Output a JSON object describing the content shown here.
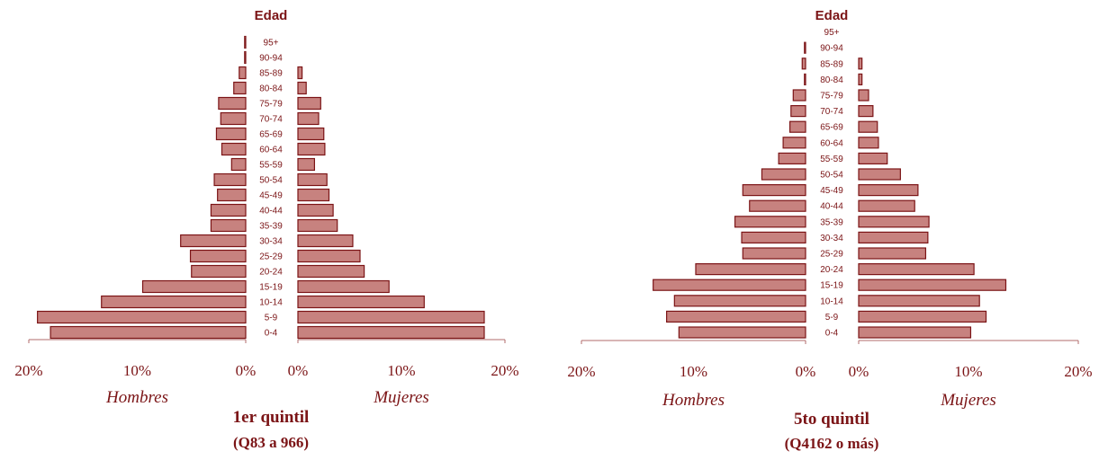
{
  "colors": {
    "bar_fill": "#c7827f",
    "bar_stroke": "#7b1416",
    "text": "#7b1416"
  },
  "chart_data": [
    {
      "type": "bar",
      "orientation": "horizontal population pyramid",
      "title": "1er quintil",
      "subtitle": "(Q83 a 966)",
      "category_label": "Edad",
      "categories": [
        "0-4",
        "5-9",
        "10-14",
        "15-19",
        "20-24",
        "25-29",
        "30-34",
        "35-39",
        "40-44",
        "45-49",
        "50-54",
        "55-59",
        "60-64",
        "65-69",
        "70-74",
        "75-79",
        "80-84",
        "85-89",
        "90-94",
        "95+"
      ],
      "left_label": "Hombres",
      "right_label": "Mujeres",
      "xlim": [
        0,
        20
      ],
      "ticks": [
        "20%",
        "10%",
        "0%"
      ],
      "ticks_right": [
        "0%",
        "10%",
        "20%"
      ],
      "series": [
        {
          "name": "Hombres",
          "values": [
            18.0,
            19.2,
            13.3,
            9.5,
            5.0,
            5.1,
            6.0,
            3.2,
            3.2,
            2.6,
            2.9,
            1.3,
            2.2,
            2.7,
            2.3,
            2.5,
            1.1,
            0.6,
            0.1,
            0.1
          ]
        },
        {
          "name": "Mujeres",
          "values": [
            18.0,
            18.0,
            12.2,
            8.8,
            6.4,
            6.0,
            5.3,
            3.8,
            3.4,
            3.0,
            2.8,
            1.6,
            2.6,
            2.5,
            2.0,
            2.2,
            0.8,
            0.4,
            0.0,
            0.0
          ]
        }
      ]
    },
    {
      "type": "bar",
      "orientation": "horizontal population pyramid",
      "title": "5to quintil",
      "subtitle": "(Q4162 o más)",
      "category_label": "Edad",
      "categories": [
        "0-4",
        "5-9",
        "10-14",
        "15-19",
        "20-24",
        "25-29",
        "30-34",
        "35-39",
        "40-44",
        "45-49",
        "50-54",
        "55-59",
        "60-64",
        "65-69",
        "70-74",
        "75-79",
        "80-84",
        "85-89",
        "90-94",
        "95+"
      ],
      "left_label": "Hombres",
      "right_label": "Mujeres",
      "xlim": [
        0,
        20
      ],
      "ticks": [
        "20%",
        "10%",
        "0%"
      ],
      "ticks_right": [
        "0%",
        "10%",
        "20%"
      ],
      "series": [
        {
          "name": "Hombres",
          "values": [
            11.3,
            12.4,
            11.7,
            13.6,
            9.8,
            5.6,
            5.7,
            6.3,
            5.0,
            5.6,
            3.9,
            2.4,
            2.0,
            1.4,
            1.3,
            1.1,
            0.1,
            0.3,
            0.1,
            0.0
          ]
        },
        {
          "name": "Mujeres",
          "values": [
            10.2,
            11.6,
            11.0,
            13.4,
            10.5,
            6.1,
            6.3,
            6.4,
            5.1,
            5.4,
            3.8,
            2.6,
            1.8,
            1.7,
            1.3,
            0.9,
            0.3,
            0.3,
            0.0,
            0.0
          ]
        }
      ]
    }
  ]
}
